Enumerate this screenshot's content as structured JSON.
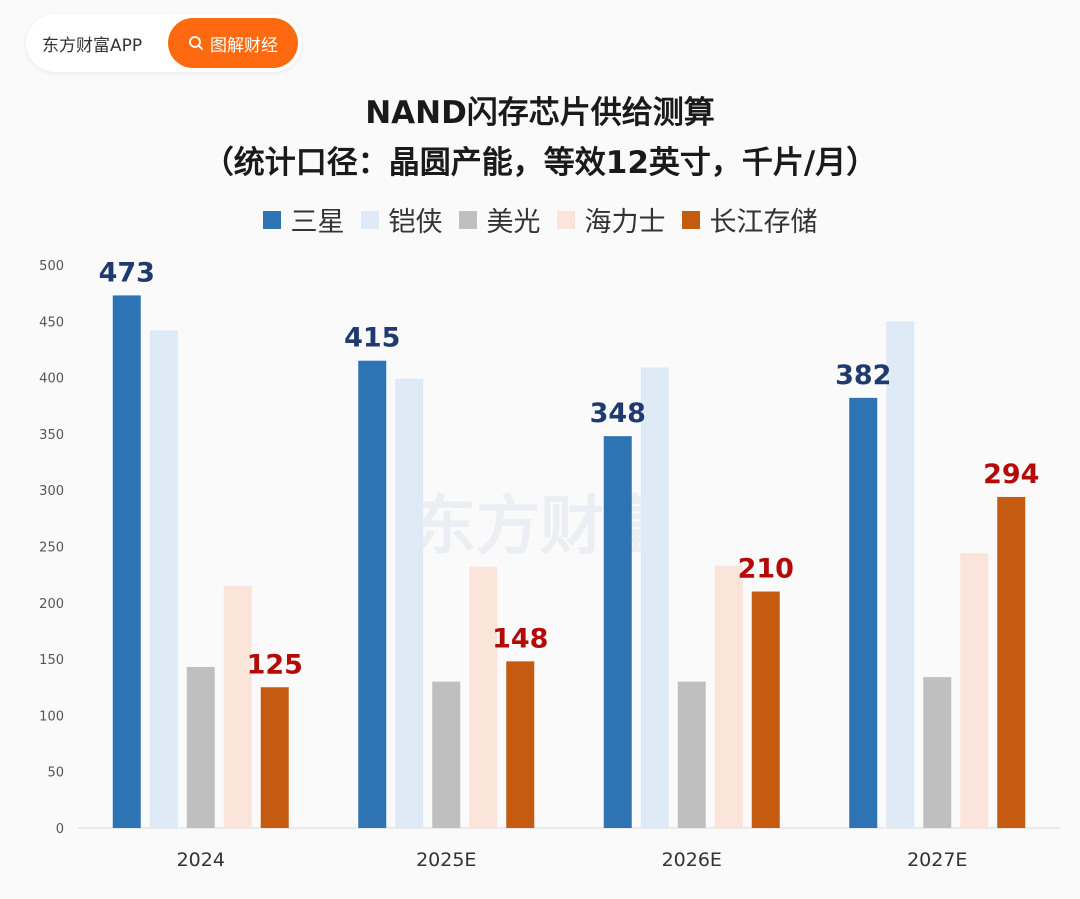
{
  "badge": {
    "app_name": "东方财富APP",
    "button_label": "图解财经"
  },
  "watermark": "东方财富",
  "chart_data": {
    "type": "bar",
    "title_line1": "NAND闪存芯片供给测算",
    "title_line2": "（统计口径：晶圆产能，等效12英寸，千片/月）",
    "categories": [
      "2024",
      "2025E",
      "2026E",
      "2027E"
    ],
    "series": [
      {
        "name": "三星",
        "color": "#2e74b5",
        "values": [
          473,
          415,
          348,
          382
        ]
      },
      {
        "name": "铠侠",
        "color": "#deebf7",
        "values": [
          442,
          399,
          409,
          450
        ]
      },
      {
        "name": "美光",
        "color": "#bfbfbf",
        "values": [
          143,
          130,
          130,
          134
        ]
      },
      {
        "name": "海力士",
        "color": "#fbe4d9",
        "values": [
          215,
          232,
          233,
          244
        ]
      },
      {
        "name": "长江存储",
        "color": "#c55a11",
        "values": [
          125,
          148,
          210,
          294
        ]
      }
    ],
    "data_labels": [
      {
        "series": 0,
        "values": [
          "473",
          "415",
          "348",
          "382"
        ],
        "color": "#1f3a6e"
      },
      {
        "series": 4,
        "values": [
          "125",
          "148",
          "210",
          "294"
        ],
        "color": "#b40a0a"
      }
    ],
    "y_ticks": [
      "0",
      "50",
      "100",
      "150",
      "200",
      "250",
      "300",
      "350",
      "400",
      "450",
      "500"
    ],
    "ylim": [
      0,
      500
    ],
    "grid": false,
    "legend_position": "top"
  }
}
